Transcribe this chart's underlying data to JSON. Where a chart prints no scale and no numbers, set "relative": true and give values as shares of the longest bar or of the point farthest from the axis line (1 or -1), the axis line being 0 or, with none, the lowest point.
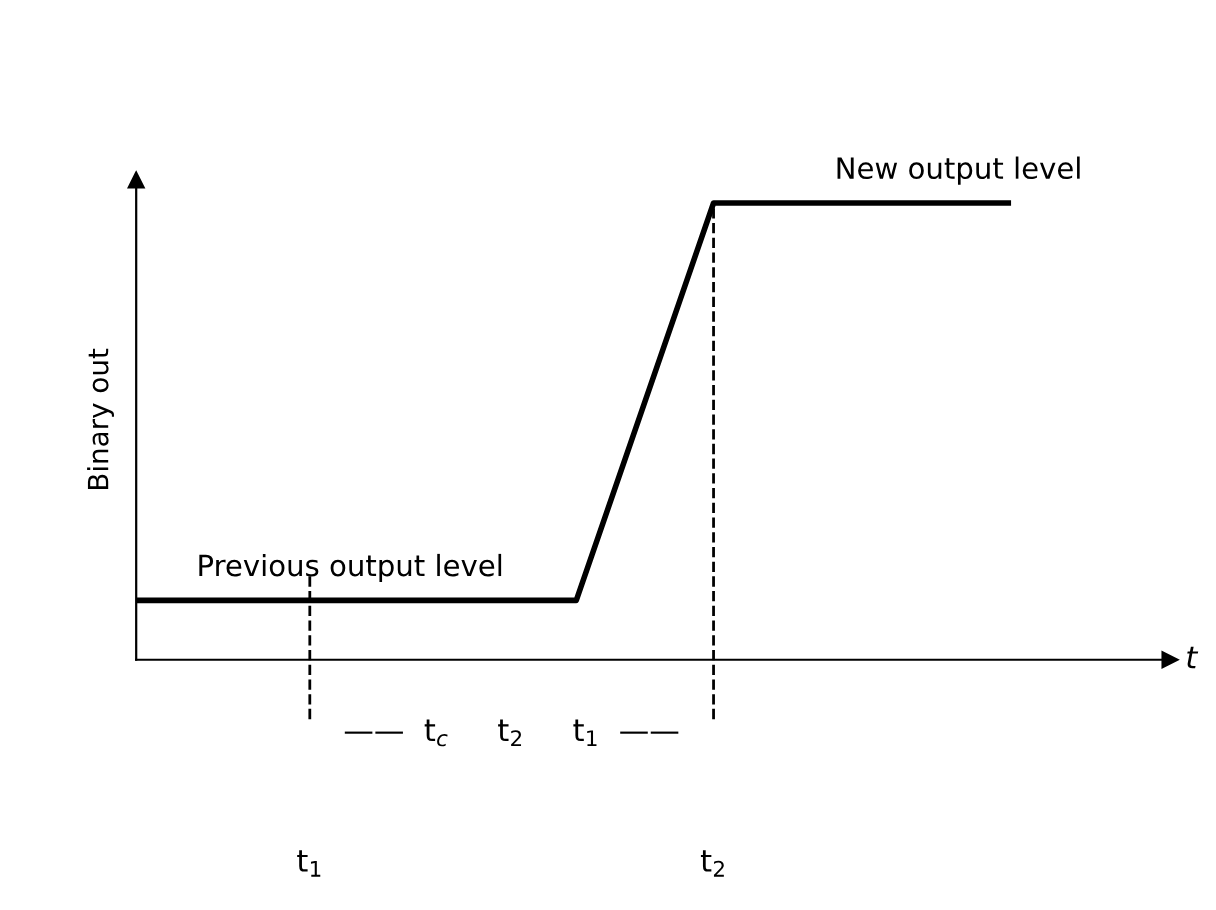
{
  "chart_data": {
    "type": "line",
    "relative": true,
    "ylabel": "Binary out",
    "xlabel": "t",
    "x": [
      0.57,
      1.66,
      2,
      2.73
    ],
    "series": [
      {
        "color": "#000000",
        "values": [
          0.13,
          0.13,
          1,
          1
        ]
      }
    ],
    "xlim": [
      0.57,
      3.13
    ],
    "xticks": [
      {
        "value": 1,
        "label": "t$_{1}$"
      },
      {
        "value": 2,
        "label": "t$_{2}$"
      }
    ],
    "ref_lines": [
      {
        "axis": "x",
        "value": 1,
        "line_style": "dashed"
      },
      {
        "axis": "x",
        "value": 2,
        "line_style": "dashed"
      }
    ],
    "annotations": [
      {
        "text": "Previous output level",
        "x": 1.1,
        "y": 0.13
      },
      {
        "text": "New output level",
        "x": 2.3,
        "y": 1
      },
      "——  t$_{c}$     t$_{2}$     t$_{1}$  ——"
    ],
    "grid": false,
    "legend": false,
    "marker": "none",
    "line_style": "solid"
  }
}
